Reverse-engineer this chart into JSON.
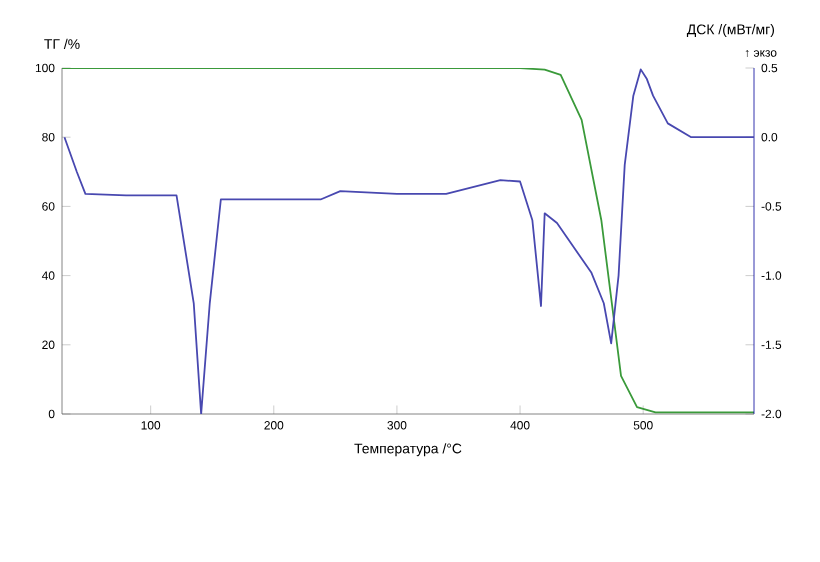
{
  "chart_data": {
    "type": "line",
    "xlabel": "Температура /°C",
    "ylabel": "ТГ /%",
    "y2label": "ДСК /(мВт/мг)",
    "annotations": [
      "↑ экзо"
    ],
    "xlim": [
      28,
      590
    ],
    "xticks": [
      100,
      200,
      300,
      400,
      500
    ],
    "ylim": [
      0,
      100
    ],
    "yticks": [
      0,
      20,
      40,
      60,
      80,
      100
    ],
    "y2lim": [
      -2,
      0.5
    ],
    "y2ticks": [
      {
        "value": -2,
        "label": "-2.0"
      },
      {
        "value": -1.5,
        "label": "-1.5"
      },
      {
        "value": -1,
        "label": "-1.0"
      },
      {
        "value": -0.5,
        "label": "-0.5"
      },
      {
        "value": 0,
        "label": "0.0"
      },
      {
        "value": 0.5,
        "label": "0.5"
      }
    ],
    "series": [
      {
        "color": "#3a9a3a",
        "x": [
          28,
          100,
          200,
          300,
          400,
          420,
          433,
          450,
          466,
          482,
          495,
          510,
          590
        ],
        "values": [
          100,
          100,
          100,
          100,
          100,
          99.5,
          98,
          85,
          56,
          11,
          2,
          0.5,
          0.5
        ]
      },
      {
        "color": "#4848b0",
        "axis": "y2",
        "x": [
          30,
          40,
          47,
          80,
          121,
          135,
          141,
          148,
          157,
          180,
          238,
          254,
          300,
          340,
          384,
          400,
          410,
          417,
          420,
          430,
          458,
          468,
          474,
          480,
          485,
          492,
          498,
          503,
          508,
          520,
          539,
          590
        ],
        "values": [
          0.0,
          -0.25,
          -0.41,
          -0.42,
          -0.42,
          -1.2,
          -2.0,
          -1.2,
          -0.45,
          -0.45,
          -0.45,
          -0.39,
          -0.41,
          -0.41,
          -0.31,
          -0.32,
          -0.6,
          -1.22,
          -0.55,
          -0.62,
          -0.98,
          -1.2,
          -1.49,
          -1.0,
          -0.2,
          0.3,
          0.49,
          0.42,
          0.3,
          0.1,
          0.0,
          0.0
        ]
      }
    ]
  }
}
